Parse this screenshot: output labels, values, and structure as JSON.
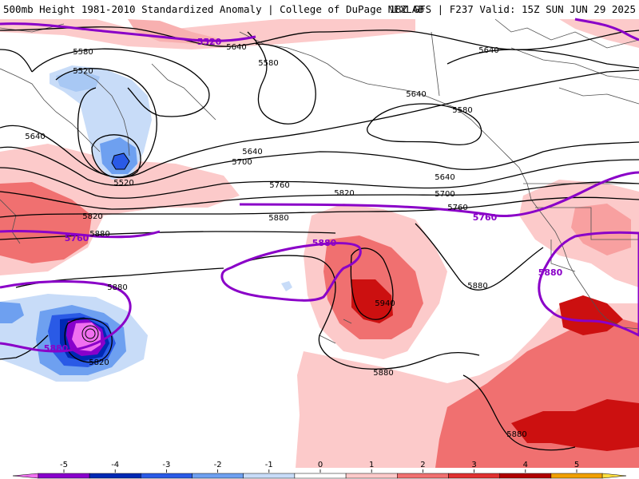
{
  "header": {
    "left_title": "500mb Height 1981-2010 Standardized Anomaly | College of DuPage NEXLAB",
    "right_title": "18Z GFS | F237 Valid: 15Z SUN JUN 29 2025"
  },
  "contour_labels_black": [
    {
      "id": "c1",
      "text": "5640"
    },
    {
      "id": "c2",
      "text": "5580"
    },
    {
      "id": "c3",
      "text": "5520"
    },
    {
      "id": "c4",
      "text": "5640"
    },
    {
      "id": "c5",
      "text": "5520"
    },
    {
      "id": "c6",
      "text": "5580"
    },
    {
      "id": "c7",
      "text": "5640"
    },
    {
      "id": "c8",
      "text": "5640"
    },
    {
      "id": "c9",
      "text": "5580"
    },
    {
      "id": "c10",
      "text": "5640"
    },
    {
      "id": "c11",
      "text": "5700"
    },
    {
      "id": "c12",
      "text": "5760"
    },
    {
      "id": "c13",
      "text": "5820"
    },
    {
      "id": "c14",
      "text": "5880"
    },
    {
      "id": "c15",
      "text": "5640"
    },
    {
      "id": "c16",
      "text": "5700"
    },
    {
      "id": "c17",
      "text": "5760"
    },
    {
      "id": "c18",
      "text": "5820"
    },
    {
      "id": "c19",
      "text": "5880"
    },
    {
      "id": "c20",
      "text": "5880"
    },
    {
      "id": "c21",
      "text": "5940"
    },
    {
      "id": "c22",
      "text": "5880"
    },
    {
      "id": "c23",
      "text": "5880"
    },
    {
      "id": "c24",
      "text": "5820"
    },
    {
      "id": "c25",
      "text": "5880"
    }
  ],
  "contour_labels_purple": [
    {
      "id": "p1",
      "text": "5520"
    },
    {
      "id": "p2",
      "text": "5760"
    },
    {
      "id": "p3",
      "text": "5880"
    },
    {
      "id": "p4",
      "text": "5760"
    },
    {
      "id": "p5",
      "text": "5880"
    },
    {
      "id": "p6",
      "text": "5880"
    }
  ],
  "legend": {
    "ticks": [
      "-5",
      "-4",
      "-3",
      "-2",
      "-1",
      "0",
      "1",
      "2",
      "3",
      "4",
      "5"
    ],
    "colors": [
      "#f070f0",
      "#8800cc",
      "#0028b4",
      "#2a5ae6",
      "#6ea0f0",
      "#c8dcf8",
      "#ffffff",
      "#fccaca",
      "#f07070",
      "#e03030",
      "#b00000",
      "#f0a000",
      "#ffe040"
    ]
  }
}
